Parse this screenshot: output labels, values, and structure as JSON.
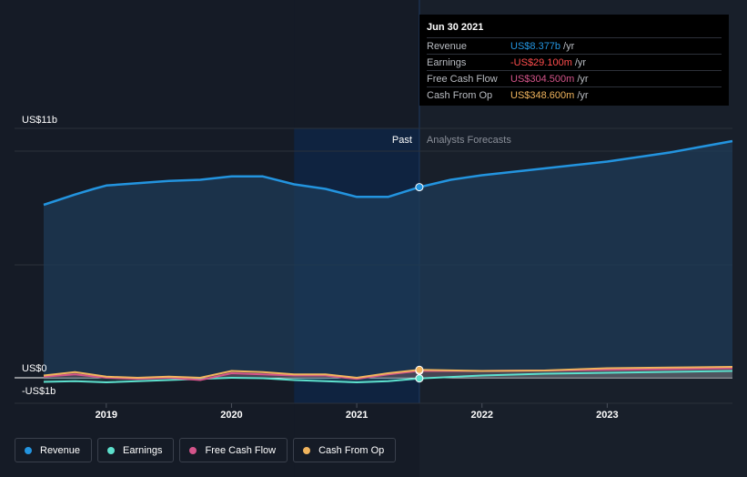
{
  "tooltip": {
    "date": "Jun 30 2021",
    "rows": [
      {
        "label": "Revenue",
        "value": "US$8.377b",
        "unit": "/yr",
        "color": "#2394df"
      },
      {
        "label": "Earnings",
        "value": "-US$29.100m",
        "unit": "/yr",
        "color": "#ff4d4d"
      },
      {
        "label": "Free Cash Flow",
        "value": "US$304.500m",
        "unit": "/yr",
        "color": "#d4548a"
      },
      {
        "label": "Cash From Op",
        "value": "US$348.600m",
        "unit": "/yr",
        "color": "#f0b45d"
      }
    ]
  },
  "zones": {
    "past": "Past",
    "forecast": "Analysts Forecasts"
  },
  "legend": [
    {
      "label": "Revenue",
      "color": "#2394df"
    },
    {
      "label": "Earnings",
      "color": "#5de0cd"
    },
    {
      "label": "Free Cash Flow",
      "color": "#d4548a"
    },
    {
      "label": "Cash From Op",
      "color": "#f0b45d"
    }
  ],
  "chart_data": {
    "type": "line",
    "y_tick_labels": [
      "US$11b",
      "US$0",
      "-US$1b"
    ],
    "ylim": [
      -1,
      11
    ],
    "xlim": [
      2018.5,
      2024.0
    ],
    "x_ticks": [
      2019,
      2020,
      2021,
      2022,
      2023
    ],
    "past_forecast_split": 2021.5,
    "highlight_band": [
      2020.5,
      2021.5
    ],
    "series": [
      {
        "name": "Revenue",
        "color": "#2394df",
        "x": [
          2018.5,
          2018.75,
          2018.9,
          2019.0,
          2019.25,
          2019.5,
          2019.75,
          2020.0,
          2020.25,
          2020.5,
          2020.75,
          2021.0,
          2021.25,
          2021.5,
          2021.75,
          2022.0,
          2022.5,
          2023.0,
          2023.5,
          2024.0
        ],
        "y": [
          7.6,
          8.05,
          8.3,
          8.45,
          8.55,
          8.65,
          8.7,
          8.85,
          8.85,
          8.5,
          8.3,
          7.95,
          7.95,
          8.377,
          8.7,
          8.9,
          9.2,
          9.5,
          9.9,
          10.4
        ]
      },
      {
        "name": "Earnings",
        "color": "#5de0cd",
        "x": [
          2018.5,
          2018.75,
          2019.0,
          2019.5,
          2020.0,
          2020.25,
          2020.5,
          2020.75,
          2021.0,
          2021.25,
          2021.5,
          2022.0,
          2022.5,
          2023.0,
          2023.5,
          2024.0
        ],
        "y": [
          -0.18,
          -0.15,
          -0.2,
          -0.1,
          0.0,
          -0.02,
          -0.1,
          -0.15,
          -0.2,
          -0.15,
          -0.029,
          0.1,
          0.18,
          0.22,
          0.26,
          0.3
        ]
      },
      {
        "name": "Free Cash Flow",
        "color": "#d4548a",
        "x": [
          2018.5,
          2018.75,
          2019.0,
          2019.25,
          2019.5,
          2019.75,
          2020.0,
          2020.25,
          2020.5,
          2020.75,
          2021.0,
          2021.25,
          2021.5,
          2022.0,
          2022.5,
          2023.0,
          2023.5,
          2024.0
        ],
        "y": [
          0.05,
          0.15,
          0.0,
          -0.05,
          0.0,
          -0.1,
          0.2,
          0.15,
          0.1,
          0.1,
          -0.05,
          0.15,
          0.3045,
          0.3,
          0.32,
          0.35,
          0.38,
          0.42
        ]
      },
      {
        "name": "Cash From Op",
        "color": "#f0b45d",
        "x": [
          2018.5,
          2018.75,
          2019.0,
          2019.25,
          2019.5,
          2019.75,
          2020.0,
          2020.25,
          2020.5,
          2020.75,
          2021.0,
          2021.25,
          2021.5,
          2022.0,
          2022.5,
          2023.0,
          2023.5,
          2024.0
        ],
        "y": [
          0.1,
          0.25,
          0.05,
          0.0,
          0.05,
          0.0,
          0.3,
          0.25,
          0.15,
          0.15,
          0.0,
          0.2,
          0.3486,
          0.3,
          0.32,
          0.42,
          0.45,
          0.48
        ]
      }
    ]
  }
}
